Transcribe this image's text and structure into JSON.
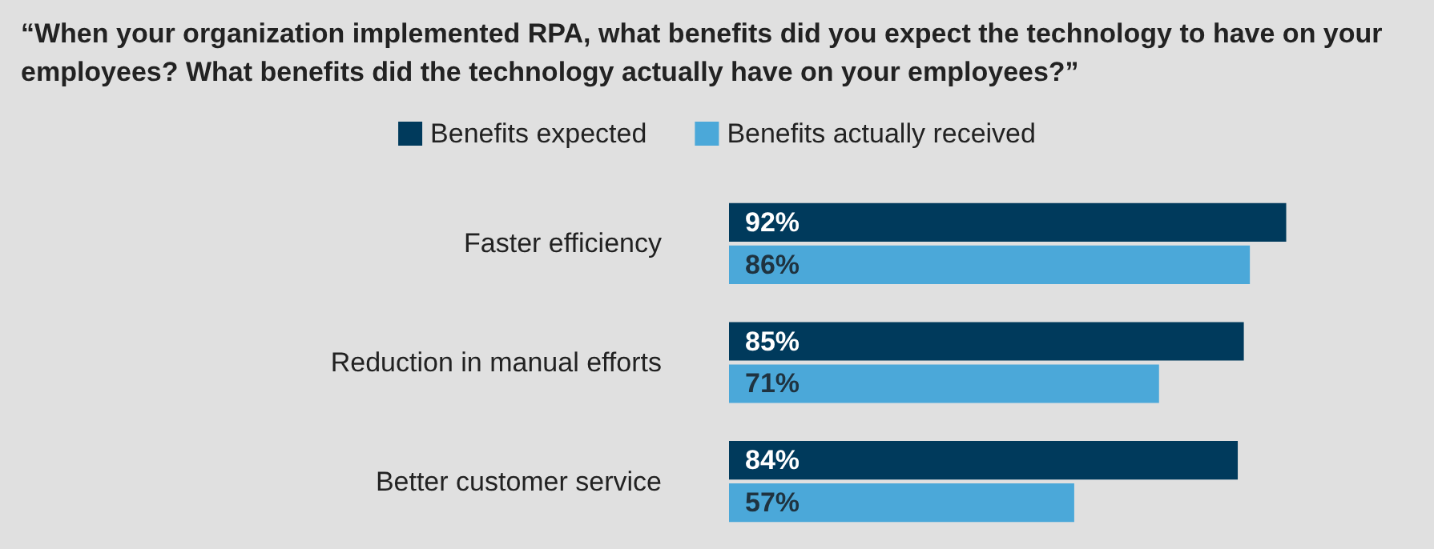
{
  "chart_data": {
    "type": "bar",
    "orientation": "horizontal",
    "title": "“When your organization implemented RPA, what benefits did you expect the technology to have on your employees? What benefits did the technology actually have on your employees?”",
    "categories": [
      "Faster efficiency",
      "Reduction in manual efforts",
      "Better customer service"
    ],
    "series": [
      {
        "name": "Benefits expected",
        "color": "#003a5c",
        "values": [
          92,
          85,
          84
        ],
        "value_labels": [
          "92%",
          "85%",
          "84%"
        ]
      },
      {
        "name": "Benefits actually received",
        "color": "#4ba8d9",
        "values": [
          86,
          71,
          57
        ],
        "value_labels": [
          "86%",
          "71%",
          "57%"
        ]
      }
    ],
    "tick_labels": "y",
    "legend": "top"
  }
}
